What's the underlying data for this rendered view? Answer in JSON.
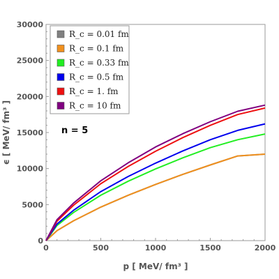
{
  "chart_data": {
    "type": "line",
    "xlabel": "p [ MeV/ fm³ ]",
    "ylabel": "ϵ [ MeV/ fm³ ]",
    "xlim": [
      0,
      2000
    ],
    "ylim": [
      0,
      30000
    ],
    "x_ticks": [
      0,
      500,
      1000,
      1500,
      2000
    ],
    "y_ticks": [
      0,
      5000,
      10000,
      15000,
      20000,
      25000,
      30000
    ],
    "x_tick_labels": [
      "0",
      "500",
      "1000",
      "1500",
      "2000"
    ],
    "y_tick_labels": [
      "0",
      "5000",
      "10000",
      "15000",
      "20000",
      "25000",
      "30000"
    ],
    "grid": false,
    "legend_position": "top-left",
    "annotation": "n = 5",
    "x": [
      0,
      100,
      250,
      500,
      750,
      1000,
      1250,
      1500,
      1750,
      2000
    ],
    "series": [
      {
        "name": "R_c = 0.01 fm",
        "color": "#808080",
        "values": [
          0,
          1380,
          2750,
          4650,
          6300,
          7800,
          9200,
          10500,
          11750,
          12000
        ]
      },
      {
        "name": "R_c = 0.1 fm",
        "color": "#f0901e",
        "values": [
          0,
          1380,
          2750,
          4650,
          6300,
          7800,
          9200,
          10500,
          11750,
          12000
        ]
      },
      {
        "name": "R_c = 0.33 fm",
        "color": "#22ee22",
        "values": [
          0,
          2100,
          3900,
          6300,
          8250,
          9950,
          11500,
          12900,
          14000,
          14800
        ]
      },
      {
        "name": "R_c = 0.5 fm",
        "color": "#0000ee",
        "values": [
          0,
          2300,
          4200,
          6800,
          8900,
          10750,
          12450,
          14000,
          15300,
          16200
        ]
      },
      {
        "name": "R_c = 1. fm",
        "color": "#ee1111",
        "values": [
          0,
          2700,
          4900,
          7900,
          10300,
          12400,
          14300,
          16000,
          17500,
          18400
        ]
      },
      {
        "name": "R_c = 10 fm",
        "color": "#800080",
        "values": [
          0,
          2900,
          5200,
          8300,
          10800,
          13000,
          14850,
          16500,
          17950,
          18800
        ]
      }
    ]
  }
}
